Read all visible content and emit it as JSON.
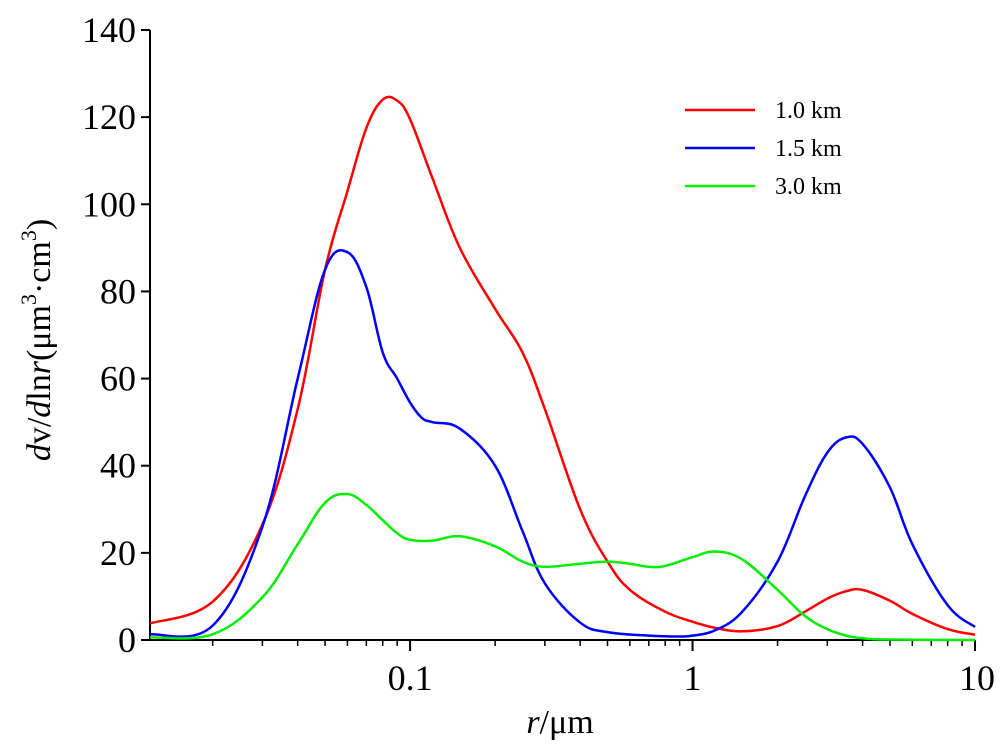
{
  "chart_data": {
    "type": "line",
    "x_scale": "log",
    "xlim": [
      0.012,
      10
    ],
    "ylim": [
      0,
      140
    ],
    "x_ticks": [
      {
        "value": 0.1,
        "label": "0.1"
      },
      {
        "value": 1,
        "label": "1"
      },
      {
        "value": 10,
        "label": "10"
      }
    ],
    "y_ticks": [
      {
        "value": 0,
        "label": "0"
      },
      {
        "value": 20,
        "label": "20"
      },
      {
        "value": 40,
        "label": "40"
      },
      {
        "value": 60,
        "label": "60"
      },
      {
        "value": 80,
        "label": "80"
      },
      {
        "value": 100,
        "label": "100"
      },
      {
        "value": 120,
        "label": "120"
      },
      {
        "value": 140,
        "label": "140"
      }
    ],
    "xlabel": {
      "var": "r",
      "unit": "/μm"
    },
    "ylabel": {
      "d1": "d",
      "v": "v/",
      "d2": "d",
      "ln": "ln",
      "r": "r",
      "unit_open": "(μm",
      "exp1": "3",
      "dot": "·cm",
      "exp2": "3",
      "unit_close": ")"
    },
    "grid": false,
    "legend_position": "top-right",
    "series": [
      {
        "name": "1.0 km",
        "color": "#ff0000",
        "points": [
          [
            0.012,
            3.8
          ],
          [
            0.02,
            8.8
          ],
          [
            0.03,
            26.5
          ],
          [
            0.04,
            53
          ],
          [
            0.05,
            85
          ],
          [
            0.06,
            103
          ],
          [
            0.07,
            117.5
          ],
          [
            0.08,
            124
          ],
          [
            0.09,
            123.8
          ],
          [
            0.1,
            119.5
          ],
          [
            0.12,
            106
          ],
          [
            0.15,
            90
          ],
          [
            0.2,
            76
          ],
          [
            0.25,
            66
          ],
          [
            0.3,
            53
          ],
          [
            0.4,
            30
          ],
          [
            0.5,
            18
          ],
          [
            0.6,
            11.5
          ],
          [
            0.8,
            6.5
          ],
          [
            1.0,
            4.2
          ],
          [
            1.2,
            2.8
          ],
          [
            1.5,
            2.0
          ],
          [
            2.0,
            3.2
          ],
          [
            2.5,
            6.5
          ],
          [
            3.0,
            9.5
          ],
          [
            3.5,
            11.2
          ],
          [
            4.0,
            11.5
          ],
          [
            5.0,
            9.0
          ],
          [
            6.0,
            6.0
          ],
          [
            8.0,
            2.5
          ],
          [
            10.0,
            1.2
          ]
        ]
      },
      {
        "name": "1.5 km",
        "color": "#0000ff",
        "points": [
          [
            0.012,
            1.3
          ],
          [
            0.02,
            3.3
          ],
          [
            0.03,
            26.0
          ],
          [
            0.04,
            60.0
          ],
          [
            0.05,
            85.0
          ],
          [
            0.06,
            89.0
          ],
          [
            0.07,
            81.0
          ],
          [
            0.08,
            66.0
          ],
          [
            0.09,
            60.0
          ],
          [
            0.1,
            54.5
          ],
          [
            0.11,
            51.0
          ],
          [
            0.12,
            50.0
          ],
          [
            0.15,
            48.5
          ],
          [
            0.2,
            40.0
          ],
          [
            0.25,
            25.0
          ],
          [
            0.3,
            13.0
          ],
          [
            0.4,
            4.0
          ],
          [
            0.5,
            1.8
          ],
          [
            0.7,
            1.0
          ],
          [
            0.9,
            0.8
          ],
          [
            1.0,
            1.0
          ],
          [
            1.2,
            2.2
          ],
          [
            1.5,
            6.5
          ],
          [
            2.0,
            18.0
          ],
          [
            2.5,
            33.0
          ],
          [
            3.0,
            43.0
          ],
          [
            3.5,
            46.5
          ],
          [
            4.0,
            45.0
          ],
          [
            5.0,
            35.0
          ],
          [
            6.0,
            22.0
          ],
          [
            8.0,
            8.0
          ],
          [
            10.0,
            3.0
          ]
        ]
      },
      {
        "name": "3.0 km",
        "color": "#00ee00",
        "points": [
          [
            0.012,
            0.6
          ],
          [
            0.02,
            1.3
          ],
          [
            0.03,
            9.8
          ],
          [
            0.04,
            22.0
          ],
          [
            0.05,
            31.5
          ],
          [
            0.06,
            33.5
          ],
          [
            0.07,
            31.0
          ],
          [
            0.08,
            27.5
          ],
          [
            0.09,
            24.5
          ],
          [
            0.1,
            23.0
          ],
          [
            0.12,
            22.8
          ],
          [
            0.15,
            23.8
          ],
          [
            0.2,
            21.5
          ],
          [
            0.25,
            18.0
          ],
          [
            0.3,
            16.8
          ],
          [
            0.4,
            17.5
          ],
          [
            0.5,
            18.0
          ],
          [
            0.6,
            17.5
          ],
          [
            0.7,
            16.8
          ],
          [
            0.8,
            17.0
          ],
          [
            1.0,
            19.0
          ],
          [
            1.2,
            20.3
          ],
          [
            1.5,
            18.5
          ],
          [
            2.0,
            11.5
          ],
          [
            2.5,
            5.5
          ],
          [
            3.0,
            2.5
          ],
          [
            3.5,
            1.0
          ],
          [
            4.0,
            0.4
          ],
          [
            5.0,
            0.1
          ],
          [
            10.0,
            0.0
          ]
        ]
      }
    ]
  }
}
